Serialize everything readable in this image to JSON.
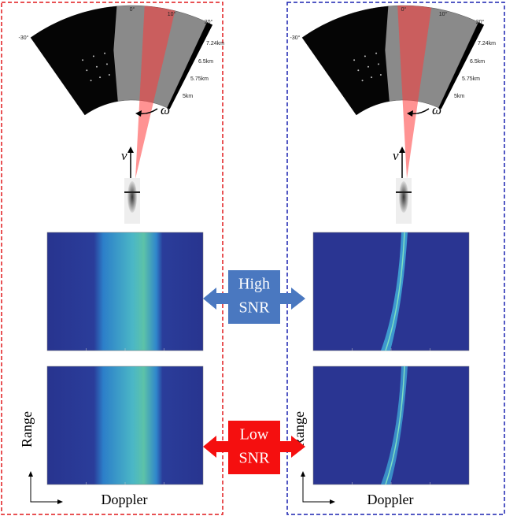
{
  "panels": [
    {
      "angle_labels": [
        "-30°",
        "0°",
        "10°",
        "20°"
      ],
      "range_labels": [
        "7.24km",
        "6.5km",
        "5.75km",
        "5km"
      ],
      "omega": "ω",
      "velocity": "v",
      "range_label": "Range",
      "doppler_label": "Doppler"
    },
    {
      "angle_labels": [
        "-30°",
        "0°",
        "10°",
        "20°"
      ],
      "range_labels": [
        "7.24km",
        "6.5km",
        "5.75km",
        "5km"
      ],
      "omega": "ω",
      "velocity": "v",
      "range_label": "Range",
      "doppler_label": "Doppler"
    }
  ],
  "center": {
    "high_snr": [
      "High",
      "SNR"
    ],
    "low_snr": [
      "Low",
      "SNR"
    ]
  }
}
